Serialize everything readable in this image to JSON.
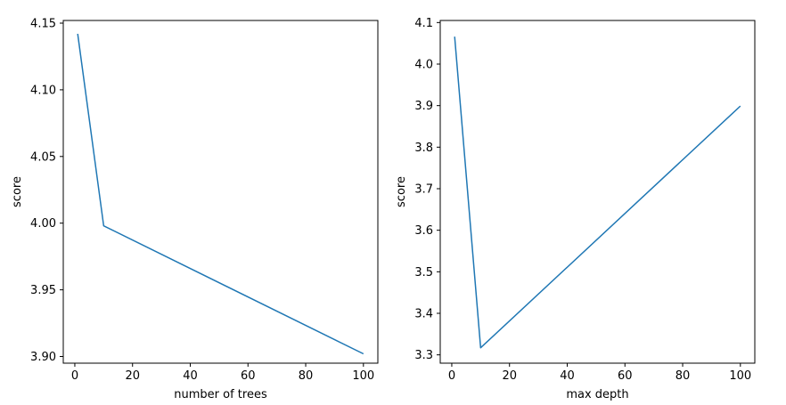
{
  "chart_data": [
    {
      "type": "line",
      "title": "",
      "xlabel": "number of trees",
      "ylabel": "score",
      "xlim": [
        -4,
        105
      ],
      "ylim": [
        3.895,
        4.152
      ],
      "xticks": [
        0,
        20,
        40,
        60,
        80,
        100
      ],
      "xtick_labels": [
        "0",
        "20",
        "40",
        "60",
        "80",
        "100"
      ],
      "yticks": [
        3.9,
        3.95,
        4.0,
        4.05,
        4.1,
        4.15
      ],
      "ytick_labels": [
        "3.90",
        "3.95",
        "4.00",
        "4.05",
        "4.10",
        "4.15"
      ],
      "grid": false,
      "color": "#1f77b4",
      "series": [
        {
          "x": [
            1,
            10,
            100
          ],
          "y": [
            4.142,
            3.998,
            3.902
          ]
        }
      ]
    },
    {
      "type": "line",
      "title": "",
      "xlabel": "max depth",
      "ylabel": "score",
      "xlim": [
        -4,
        105
      ],
      "ylim": [
        3.28,
        4.105
      ],
      "xticks": [
        0,
        20,
        40,
        60,
        80,
        100
      ],
      "xtick_labels": [
        "0",
        "20",
        "40",
        "60",
        "80",
        "100"
      ],
      "yticks": [
        3.3,
        3.4,
        3.5,
        3.6,
        3.7,
        3.8,
        3.9,
        4.0,
        4.1
      ],
      "ytick_labels": [
        "3.3",
        "3.4",
        "3.5",
        "3.6",
        "3.7",
        "3.8",
        "3.9",
        "4.0",
        "4.1"
      ],
      "grid": false,
      "color": "#1f77b4",
      "series": [
        {
          "x": [
            1,
            10,
            100
          ],
          "y": [
            4.066,
            3.317,
            3.899
          ]
        }
      ]
    }
  ]
}
